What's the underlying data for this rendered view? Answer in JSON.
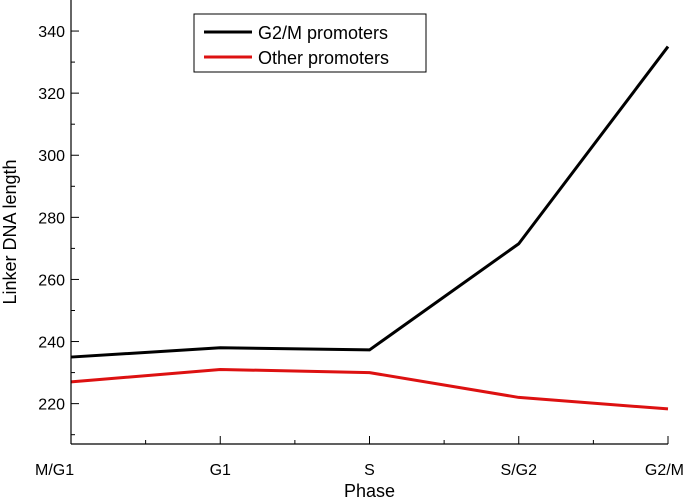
{
  "chart_data": {
    "type": "line",
    "categories": [
      "M/G1",
      "G1",
      "S",
      "S/G2",
      "G2/M"
    ],
    "series": [
      {
        "name": "G2/M promoters",
        "values": [
          235,
          238,
          237.3,
          271.5,
          335
        ],
        "color": "#000000"
      },
      {
        "name": "Other promoters",
        "values": [
          227,
          231,
          230,
          222,
          218.3
        ],
        "color": "#dd1111"
      }
    ],
    "xlabel": "Phase",
    "ylabel": "Linker DNA length",
    "ylim": [
      207,
      350
    ],
    "yticks": [
      220,
      240,
      260,
      280,
      300,
      320,
      340
    ],
    "grid": false,
    "legend_position": "top-center"
  }
}
